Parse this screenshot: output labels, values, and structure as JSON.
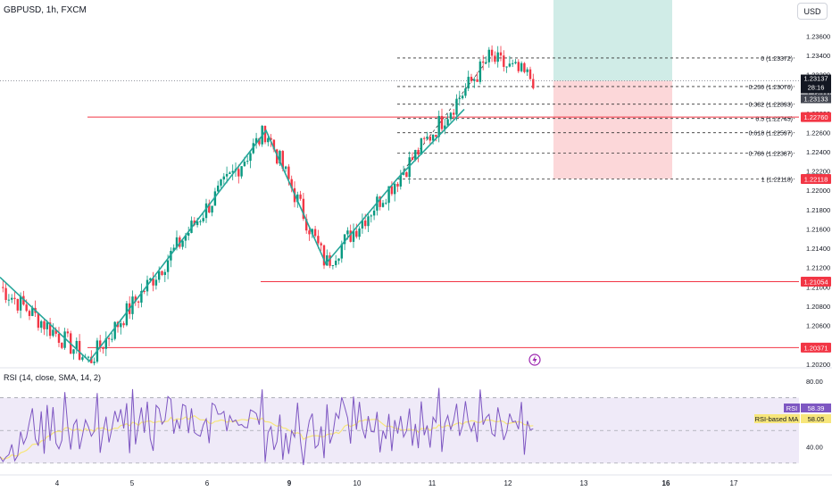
{
  "header": {
    "symbol": "GBPUSD, 1h, FXCM",
    "currency": "USD"
  },
  "colors": {
    "up": "#089981",
    "down": "#f23645",
    "zigzag": "#26a69a",
    "level": "#f23645",
    "target_zone": "#d0ece7",
    "stop_zone": "#fcd7d9",
    "rsi": "#7e57c2",
    "rsi_ma": "#f7e67b",
    "rsi_band": "#efeaf8"
  },
  "chart_data": {
    "type": "candlestick",
    "symbol": "GBPUSD",
    "timeframe": "1h",
    "price_axis": {
      "ylim": [
        1.2018,
        1.2388
      ],
      "ticks": [
        "1.23600",
        "1.23400",
        "1.23200",
        "1.23000",
        "1.22800",
        "1.22600",
        "1.22400",
        "1.22200",
        "1.22000",
        "1.21800",
        "1.21600",
        "1.21400",
        "1.21200",
        "1.21000",
        "1.20800",
        "1.20600",
        "1.20400",
        "1.20200"
      ]
    },
    "x_ticks": [
      {
        "label": "4",
        "bold": false
      },
      {
        "label": "5",
        "bold": false
      },
      {
        "label": "6",
        "bold": false
      },
      {
        "label": "9",
        "bold": true
      },
      {
        "label": "10",
        "bold": false
      },
      {
        "label": "11",
        "bold": false
      },
      {
        "label": "12",
        "bold": false
      },
      {
        "label": "13",
        "bold": false
      },
      {
        "label": "16",
        "bold": true
      },
      {
        "label": "17",
        "bold": false
      }
    ],
    "anchors": [
      {
        "x": 0,
        "p": 1.21
      },
      {
        "x": 100,
        "p": 1.2023
      },
      {
        "x": 298,
        "p": 1.2262
      },
      {
        "x": 365,
        "p": 1.2124
      },
      {
        "x": 445,
        "p": 1.2212
      },
      {
        "x": 548,
        "p": 1.2337
      },
      {
        "x": 600,
        "p": 1.2314
      }
    ],
    "horizontal_levels": [
      {
        "price": 1.2276,
        "label": "1.22760",
        "from_x": 98
      },
      {
        "price": 1.21054,
        "label": "1.21054",
        "from_x": 292
      },
      {
        "price": 1.20371,
        "label": "1.20371",
        "from_x": 98
      }
    ],
    "current_price": {
      "label": "1.23137",
      "countdown": "28:16",
      "secondary": "1.23133"
    },
    "fibonacci": [
      {
        "ratio": "0",
        "price": 1.23372,
        "label": "0 (1.23372)"
      },
      {
        "ratio": "0.236",
        "price": 1.23076,
        "label": "0.236 (1.23076)"
      },
      {
        "ratio": "0.382",
        "price": 1.22893,
        "label": "0.382 (1.22893)"
      },
      {
        "ratio": "0.5",
        "price": 1.22745,
        "label": "0.5 (1.22745)"
      },
      {
        "ratio": "0.618",
        "price": 1.22597,
        "label": "0.618 (1.22597)"
      },
      {
        "ratio": "0.786",
        "price": 1.22387,
        "label": "0.786 (1.22387)"
      },
      {
        "ratio": "1",
        "price": 1.22118,
        "label": "1 (1.22118)"
      }
    ],
    "fib_bottom_label": "1.22118",
    "zigzag": [
      {
        "x": 0,
        "p": 1.211
      },
      {
        "x": 100,
        "p": 1.2023
      },
      {
        "x": 298,
        "p": 1.2262
      },
      {
        "x": 365,
        "p": 1.2124
      },
      {
        "x": 445,
        "p": 1.2212
      },
      {
        "x": 520,
        "p": 1.2284
      }
    ],
    "position_tool": {
      "entry": 1.23135,
      "target": 1.2388,
      "stop": 1.2212
    }
  },
  "rsi_panel": {
    "title": "RSI (14, close, SMA, 14, 2)",
    "ylim": [
      25,
      85
    ],
    "ticks": [
      "80.00",
      "40.00"
    ],
    "band": [
      70,
      30
    ],
    "rsi_label": "RSI",
    "rsi_value": "58.39",
    "ma_label": "RSI-based MA",
    "ma_value": "58.05"
  }
}
